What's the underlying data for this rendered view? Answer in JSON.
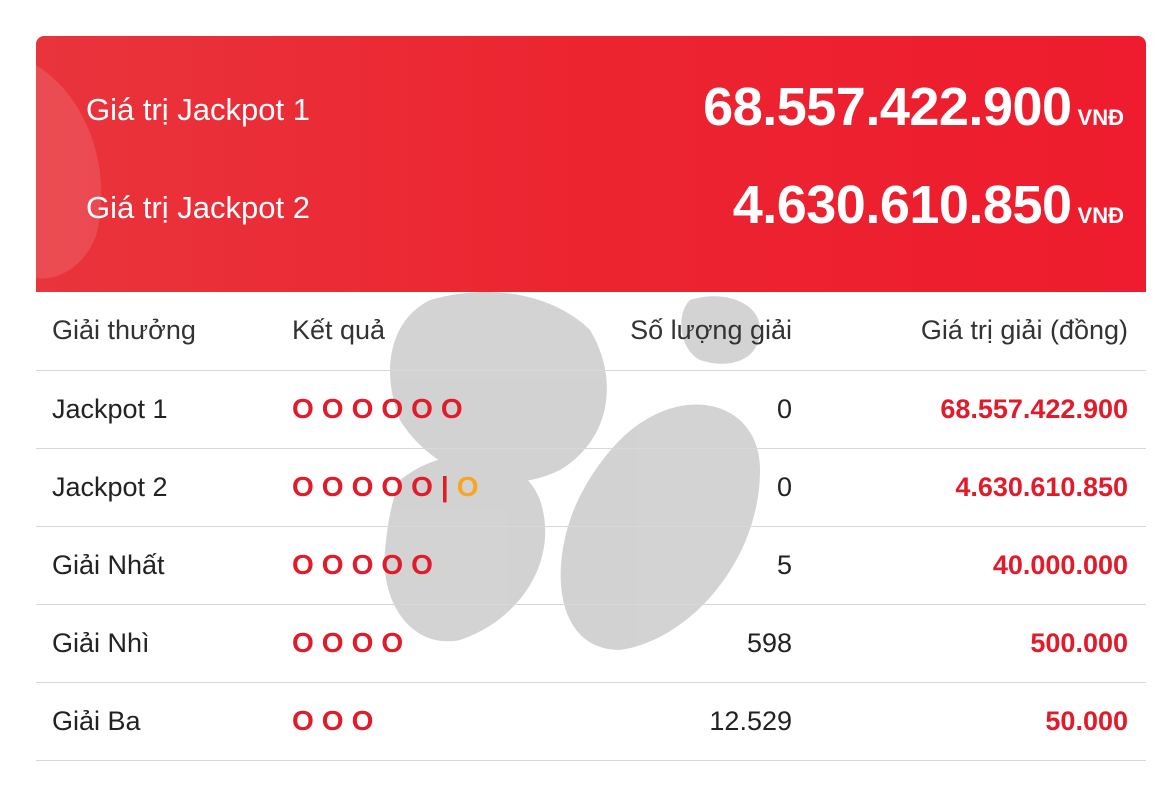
{
  "banner": [
    {
      "label": "Giá trị Jackpot 1",
      "value": "68.557.422.900",
      "unit": "VNĐ"
    },
    {
      "label": "Giá trị Jackpot 2",
      "value": "4.630.610.850",
      "unit": "VNĐ"
    }
  ],
  "table": {
    "headers": [
      "Giải thưởng",
      "Kết quả",
      "Số lượng giải",
      "Giá trị giải (đồng)"
    ],
    "rows": [
      {
        "name": "Jackpot 1",
        "result": [
          "O",
          "O",
          "O",
          "O",
          "O",
          "O"
        ],
        "count": "0",
        "value": "68.557.422.900"
      },
      {
        "name": "Jackpot 2",
        "result": [
          "O",
          "O",
          "O",
          "O",
          "O"
        ],
        "separator": "|",
        "bonus": "O",
        "count": "0",
        "value": "4.630.610.850"
      },
      {
        "name": "Giải Nhất",
        "result": [
          "O",
          "O",
          "O",
          "O",
          "O"
        ],
        "count": "5",
        "value": "40.000.000"
      },
      {
        "name": "Giải Nhì",
        "result": [
          "O",
          "O",
          "O",
          "O"
        ],
        "count": "598",
        "value": "500.000"
      },
      {
        "name": "Giải Ba",
        "result": [
          "O",
          "O",
          "O"
        ],
        "count": "12.529",
        "value": "50.000"
      }
    ]
  }
}
